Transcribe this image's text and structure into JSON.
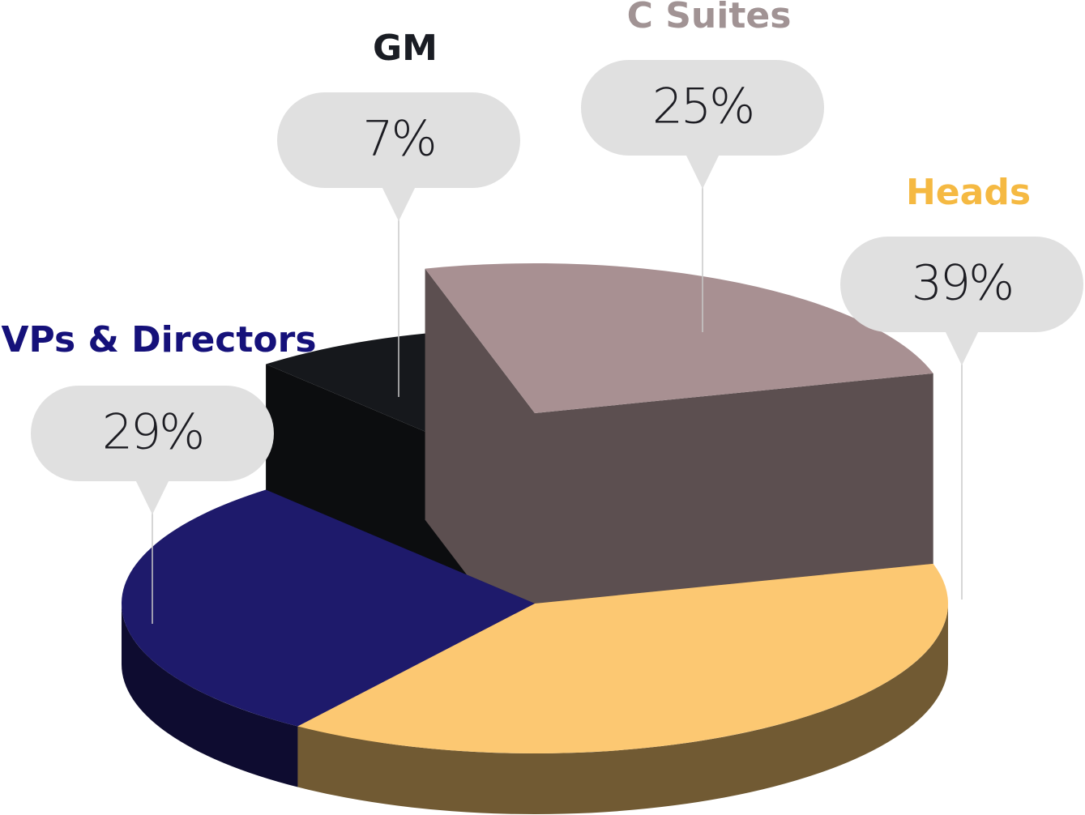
{
  "chart_data": {
    "type": "pie",
    "categories": [
      "VPs & Directors",
      "GM",
      "C Suites",
      "Heads"
    ],
    "values": [
      29,
      7,
      25,
      39
    ],
    "value_labels": [
      "29%",
      "7%",
      "25%",
      "39%"
    ],
    "colors": [
      "#1e1a6b",
      "#16181c",
      "#a89092",
      "#fcc872"
    ],
    "label_colors": [
      "#15117a",
      "#1a1d24",
      "#a19394",
      "#f5b942"
    ]
  }
}
